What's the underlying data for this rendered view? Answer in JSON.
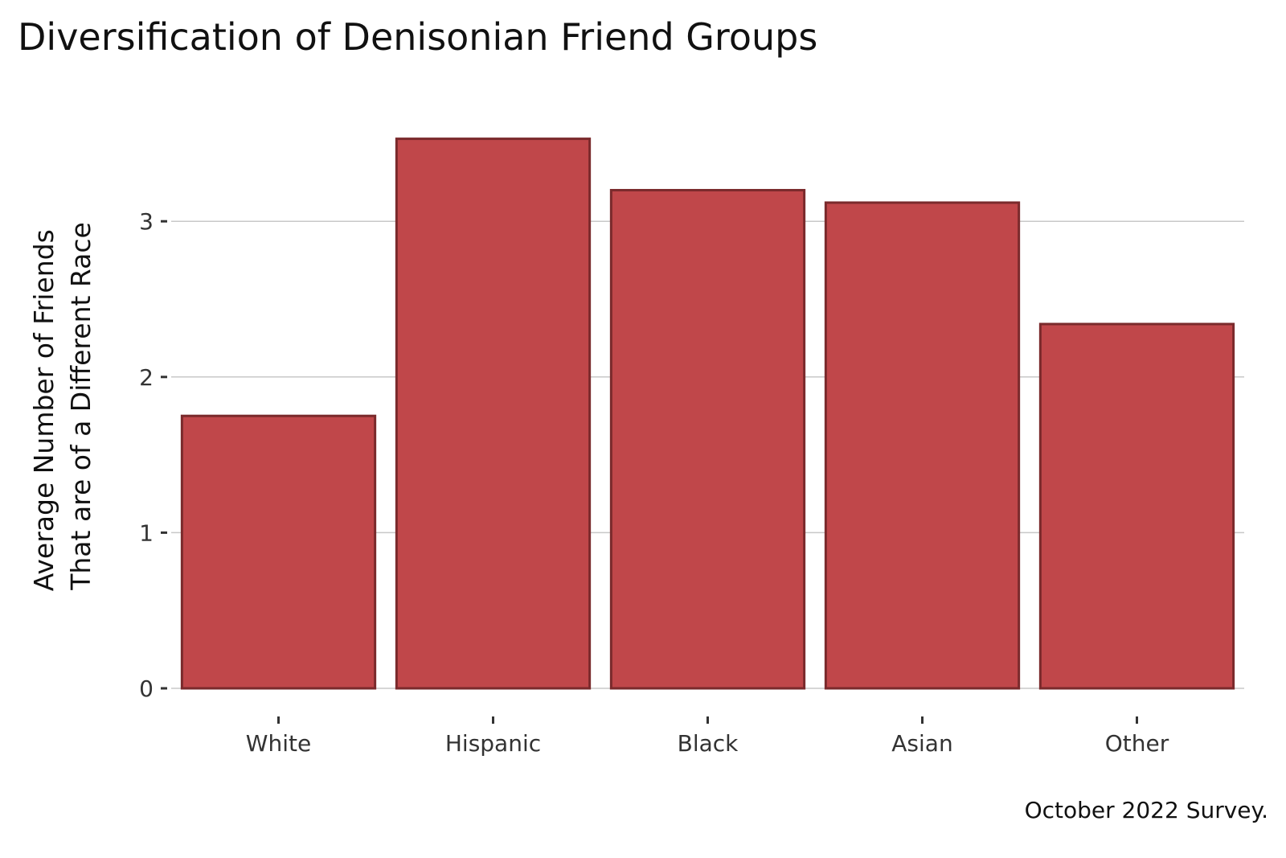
{
  "chart_data": {
    "type": "bar",
    "title": "Diversification of Denisonian Friend Groups",
    "xlabel": "",
    "ylabel_lines": [
      "Average Number of Friends",
      "That are of a Different Race"
    ],
    "categories": [
      "White",
      "Hispanic",
      "Black",
      "Asian",
      "Other"
    ],
    "values": [
      1.75,
      3.53,
      3.2,
      3.12,
      2.34
    ],
    "ylim": [
      0,
      3.55
    ],
    "yticks": [
      0,
      1,
      2,
      3
    ],
    "grid": true,
    "legend": "none",
    "caption": "October 2022 Survey.",
    "colors": {
      "bar_fill": "#c0474a",
      "bar_stroke": "#7a2a2c",
      "grid": "#c8c8c8"
    }
  }
}
